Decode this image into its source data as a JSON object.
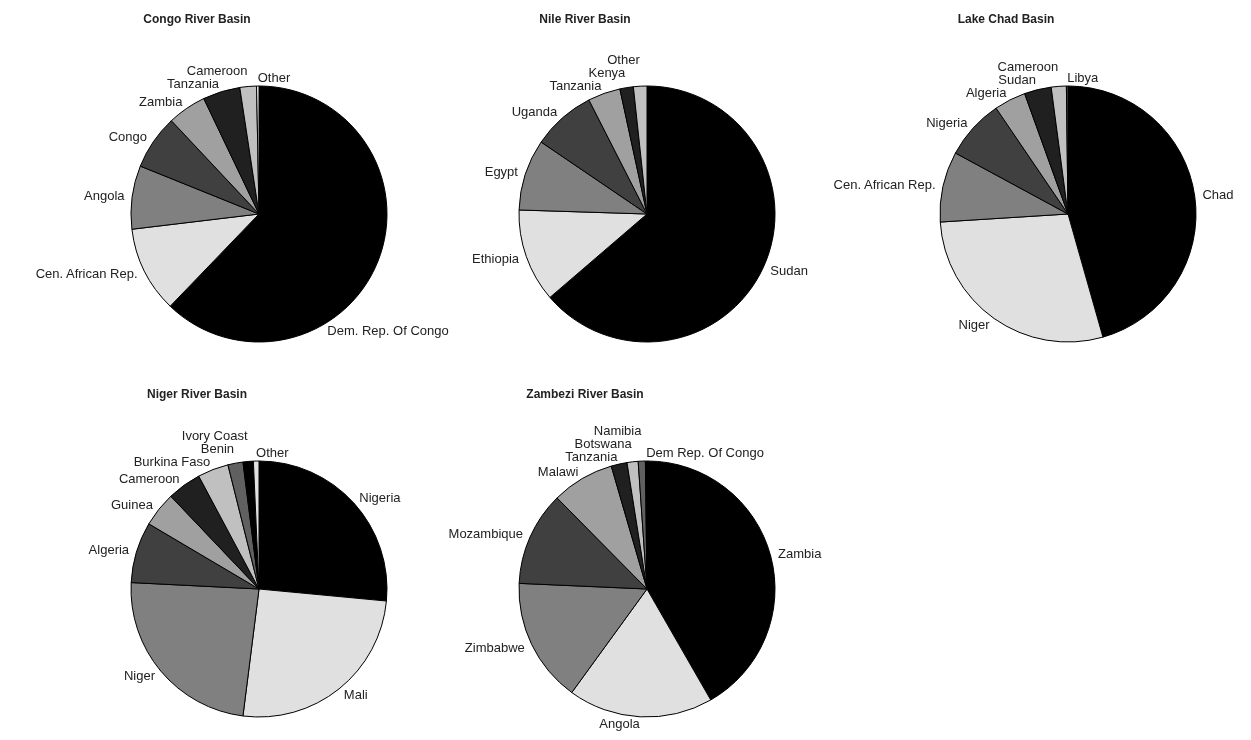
{
  "chart_data": [
    {
      "type": "pie",
      "title": "Congo River Basin",
      "categories": [
        "Dem. Rep. Of Congo",
        "Cen. African Rep.",
        "Angola",
        "Congo",
        "Zambia",
        "Tanzania",
        "Cameroon",
        "Other"
      ],
      "values": [
        62.2,
        10.9,
        8.0,
        6.9,
        4.9,
        4.7,
        2.1,
        0.3
      ],
      "colors": [
        "#000000",
        "#e0e0e0",
        "#808080",
        "#404040",
        "#a0a0a0",
        "#202020",
        "#c0c0c0",
        "#ffffff"
      ]
    },
    {
      "type": "pie",
      "title": "Nile River Basin",
      "categories": [
        "Sudan",
        "Ethiopia",
        "Egypt",
        "Uganda",
        "Tanzania",
        "Kenya",
        "Other"
      ],
      "values": [
        63.7,
        11.8,
        9.0,
        8.0,
        4.1,
        1.7,
        1.7
      ],
      "colors": [
        "#000000",
        "#e0e0e0",
        "#808080",
        "#404040",
        "#a0a0a0",
        "#202020",
        "#c0c0c0"
      ]
    },
    {
      "type": "pie",
      "title": "Lake Chad Basin",
      "categories": [
        "Chad",
        "Niger",
        "Cen. African Rep.",
        "Nigeria",
        "Algeria",
        "Sudan",
        "Cameroon",
        "Libya"
      ],
      "values": [
        45.6,
        28.4,
        8.9,
        7.6,
        4.0,
        3.4,
        1.9,
        0.2
      ],
      "colors": [
        "#000000",
        "#e0e0e0",
        "#808080",
        "#404040",
        "#a0a0a0",
        "#202020",
        "#c0c0c0",
        "#606060"
      ]
    },
    {
      "type": "pie",
      "title": "Niger River Basin",
      "categories": [
        "Nigeria",
        "Mali",
        "Niger",
        "Algeria",
        "Guinea",
        "Cameroon",
        "Burkina Faso",
        "Benin",
        "Ivory Coast",
        "Other"
      ],
      "values": [
        26.5,
        25.5,
        23.8,
        7.7,
        4.4,
        4.3,
        3.9,
        1.9,
        1.3,
        0.7
      ],
      "colors": [
        "#000000",
        "#e0e0e0",
        "#808080",
        "#404040",
        "#a0a0a0",
        "#202020",
        "#c0c0c0",
        "#606060",
        "#000000",
        "#e0e0e0"
      ]
    },
    {
      "type": "pie",
      "title": "Zambezi River Basin",
      "categories": [
        "Zambia",
        "Angola",
        "Zimbabwe",
        "Mozambique",
        "Malawi",
        "Tanzania",
        "Botswana",
        "Namibia",
        "Dem Rep. Of Congo"
      ],
      "values": [
        41.7,
        18.3,
        15.7,
        11.9,
        7.9,
        2.0,
        1.4,
        0.9,
        0.2
      ],
      "colors": [
        "#000000",
        "#e0e0e0",
        "#808080",
        "#404040",
        "#a0a0a0",
        "#202020",
        "#c0c0c0",
        "#606060",
        "#000000"
      ]
    }
  ]
}
